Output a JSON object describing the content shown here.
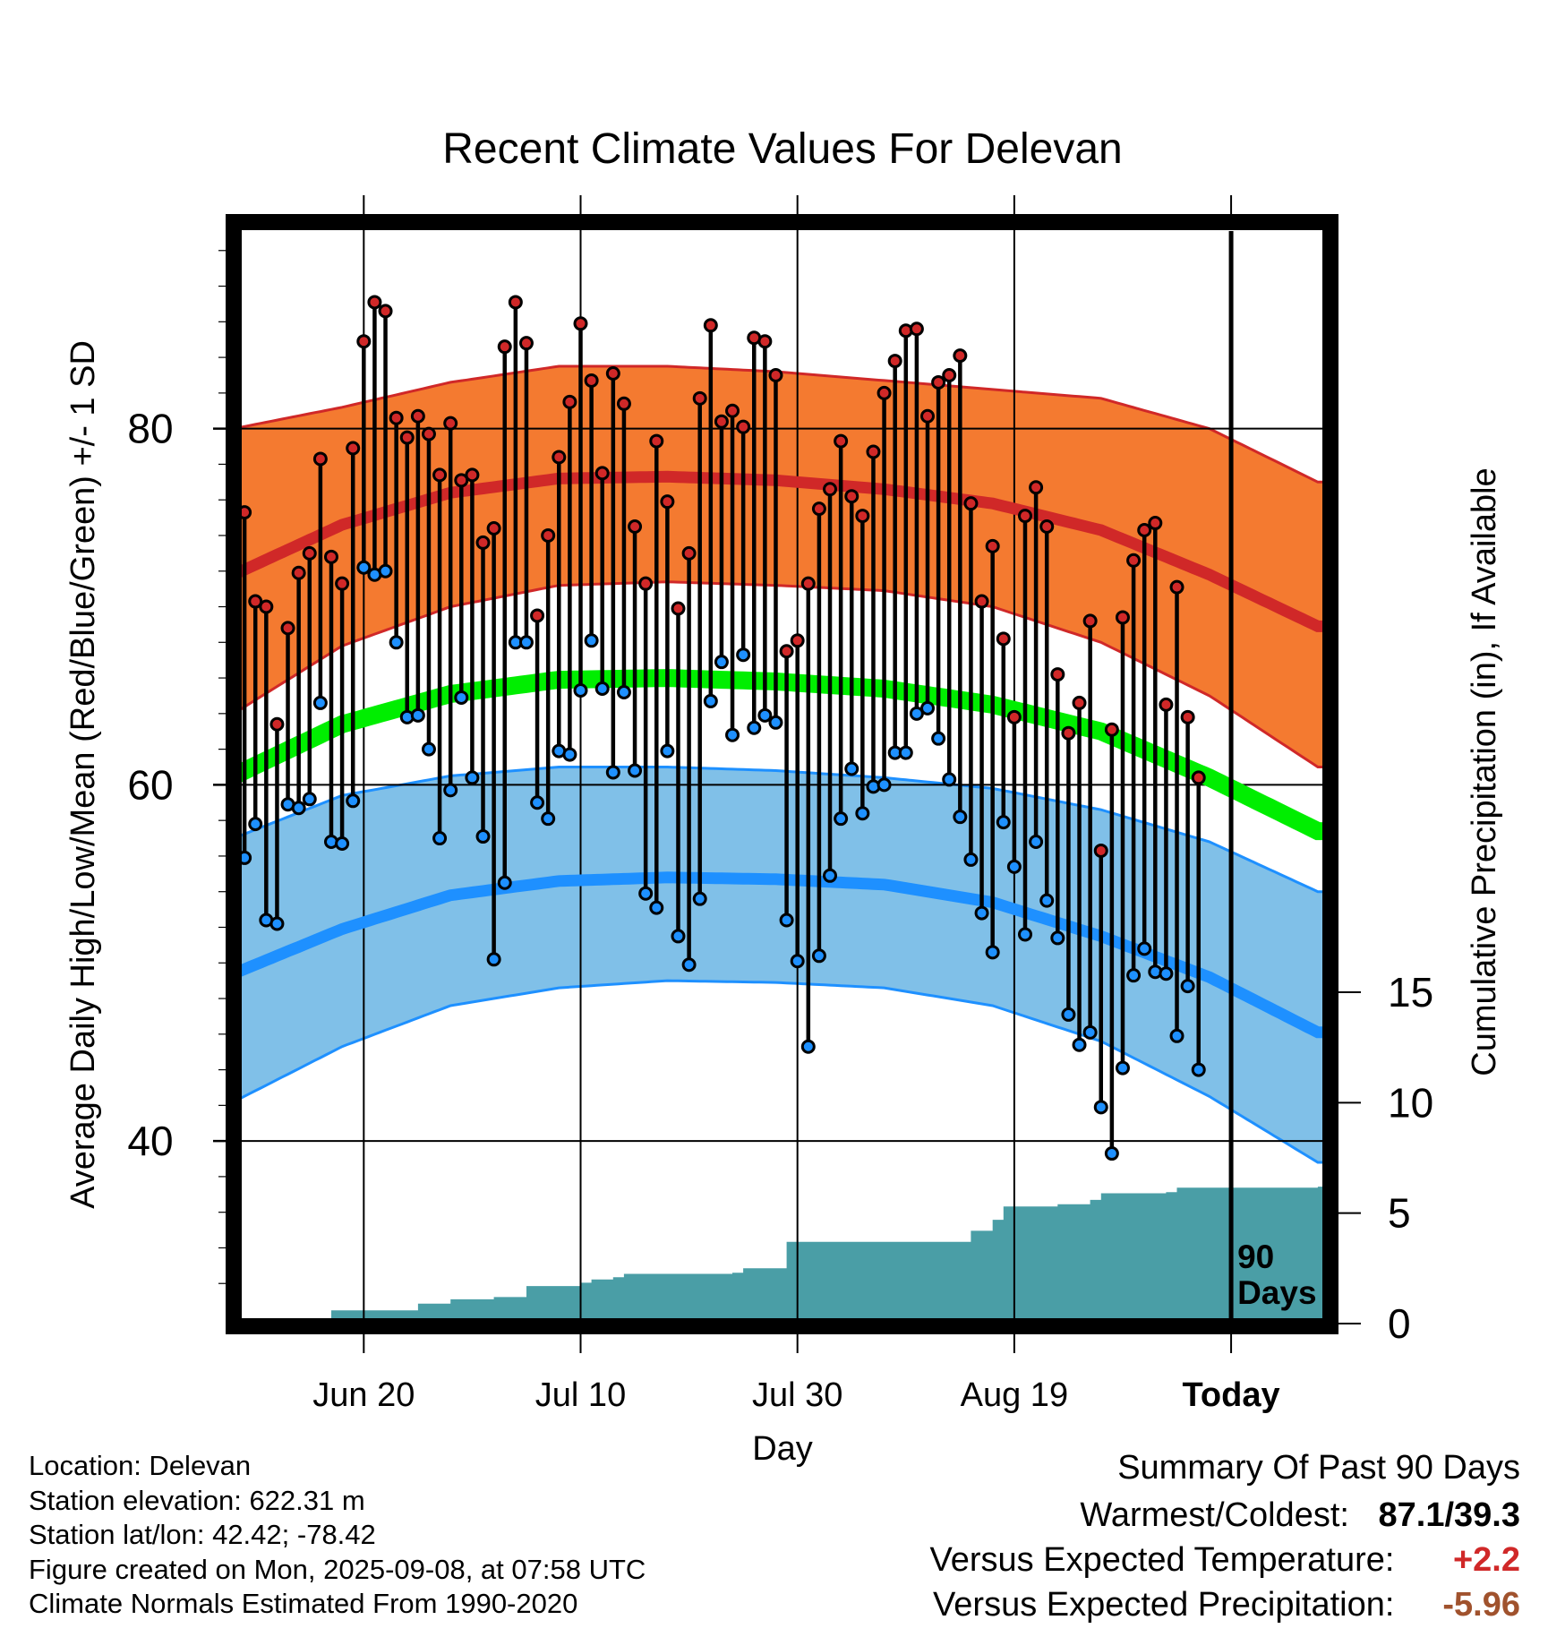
{
  "chart_data": {
    "type": "line",
    "title": "Recent Climate Values For Delevan",
    "xlabel": "Day",
    "ylabel": "Average Daily High/Low/Mean (Red/Blue/Green) +/- 1 SD",
    "ylabel2": "Cumulative Precipitation (in), If Available",
    "x_ticks": [
      {
        "label": "Jun 20",
        "day": 12
      },
      {
        "label": "Jul 10",
        "day": 32
      },
      {
        "label": "Jul 30",
        "day": 52
      },
      {
        "label": "Aug 19",
        "day": 72
      },
      {
        "label": "Today",
        "day": 92
      }
    ],
    "xlim_days": [
      0,
      100.5
    ],
    "ylim_temp": [
      30,
      92
    ],
    "y_ticks_temp": [
      40,
      60,
      80
    ],
    "y_ticks_precip": [
      0,
      5,
      10,
      15
    ],
    "precip_axis_span_in": 20,
    "grid": true,
    "today_day": 92,
    "today_label": [
      "90",
      "Days"
    ],
    "colors": {
      "high_band": "#f47a30",
      "high_line": "#d02828",
      "low_band": "#80c0e8",
      "low_line": "#1e90ff",
      "mean_line": "#00ee00",
      "precip": "#4a9ea6",
      "high_point": "#d02828",
      "low_point": "#1e90ff",
      "positive_temp": "#d02828",
      "negative_precip": "#a0522d"
    },
    "normals": {
      "days": [
        0,
        10,
        20,
        30,
        40,
        50,
        60,
        70,
        80,
        90,
        100
      ],
      "high_mean": [
        71.8,
        74.6,
        76.4,
        77.2,
        77.3,
        77.1,
        76.6,
        75.8,
        74.3,
        71.8,
        68.9
      ],
      "high_upper": [
        80.0,
        81.2,
        82.6,
        83.5,
        83.5,
        83.2,
        82.7,
        82.2,
        81.7,
        80.0,
        77.0
      ],
      "high_lower": [
        64.0,
        67.8,
        70.0,
        71.2,
        71.4,
        71.2,
        70.9,
        70.0,
        68.0,
        65.0,
        61.0
      ],
      "mean": [
        60.5,
        63.4,
        65.1,
        65.9,
        66.0,
        65.8,
        65.4,
        64.5,
        63.0,
        60.4,
        57.4
      ],
      "low_mean": [
        49.4,
        51.9,
        53.8,
        54.6,
        54.8,
        54.7,
        54.4,
        53.4,
        51.5,
        49.2,
        46.1
      ],
      "low_upper": [
        57.0,
        59.4,
        60.5,
        61.0,
        61.0,
        60.8,
        60.4,
        59.8,
        58.6,
        56.8,
        54.0
      ],
      "low_lower": [
        42.2,
        45.3,
        47.6,
        48.6,
        49.0,
        48.9,
        48.6,
        47.6,
        45.6,
        42.5,
        38.8
      ]
    },
    "series": [
      {
        "name": "Daily High",
        "start_day": 0,
        "values": [
          65.7,
          75.3,
          70.3,
          70.0,
          63.4,
          68.8,
          71.9,
          73.0,
          78.3,
          72.8,
          71.3,
          78.9,
          84.9,
          87.1,
          86.6,
          80.6,
          79.5,
          80.7,
          79.7,
          77.4,
          80.3,
          77.1,
          77.4,
          73.6,
          74.4,
          84.6,
          87.1,
          84.8,
          69.5,
          74.0,
          78.4,
          81.5,
          85.9,
          82.7,
          77.5,
          83.1,
          81.4,
          74.5,
          71.3,
          79.3,
          75.9,
          69.9,
          73.0,
          81.7,
          85.8,
          80.4,
          81.0,
          80.1,
          85.1,
          84.9,
          83.0,
          67.5,
          68.1,
          71.3,
          75.5,
          76.6,
          79.3,
          76.2,
          75.1,
          78.7,
          82.0,
          83.8,
          85.5,
          85.6,
          80.7,
          82.6,
          83.0,
          84.1,
          75.8,
          70.3,
          73.4,
          68.2,
          63.8,
          75.1,
          76.7,
          74.5,
          66.2,
          62.9,
          64.6,
          69.2,
          56.3,
          63.1,
          69.4,
          72.6,
          74.3,
          74.7,
          64.5,
          71.1,
          63.8,
          60.4
        ]
      },
      {
        "name": "Daily Low",
        "start_day": 0,
        "values": [
          55.9,
          55.9,
          57.8,
          52.4,
          52.2,
          58.9,
          58.7,
          59.2,
          64.6,
          56.8,
          56.7,
          59.1,
          72.2,
          71.8,
          72.0,
          68.0,
          63.8,
          63.9,
          62.0,
          57.0,
          59.7,
          64.9,
          60.4,
          57.1,
          50.2,
          54.5,
          68.0,
          68.0,
          59.0,
          58.1,
          61.9,
          61.7,
          65.3,
          68.1,
          65.4,
          60.7,
          65.2,
          60.8,
          53.9,
          53.1,
          61.9,
          51.5,
          49.9,
          53.6,
          64.7,
          66.9,
          62.8,
          67.3,
          63.2,
          63.9,
          63.5,
          52.4,
          50.1,
          45.3,
          50.4,
          54.9,
          58.1,
          60.9,
          58.4,
          59.9,
          60.0,
          61.8,
          61.8,
          64.0,
          64.3,
          62.6,
          60.3,
          58.2,
          55.8,
          52.8,
          50.6,
          57.9,
          55.4,
          51.6,
          56.8,
          53.5,
          51.4,
          47.1,
          45.4,
          46.1,
          41.9,
          39.3,
          44.1,
          49.3,
          50.8,
          49.5,
          49.4,
          45.9,
          48.7,
          44.0
        ]
      },
      {
        "name": "Cumulative Precipitation (in)",
        "points": [
          [
            0,
            0
          ],
          [
            8,
            0
          ],
          [
            9,
            0.6
          ],
          [
            16,
            0.6
          ],
          [
            17,
            0.9
          ],
          [
            19,
            0.9
          ],
          [
            20,
            1.1
          ],
          [
            23,
            1.1
          ],
          [
            24,
            1.2
          ],
          [
            26,
            1.2
          ],
          [
            27,
            1.7
          ],
          [
            31,
            1.7
          ],
          [
            32,
            1.85
          ],
          [
            33,
            2.0
          ],
          [
            35,
            2.1
          ],
          [
            36,
            2.25
          ],
          [
            46,
            2.3
          ],
          [
            47,
            2.5
          ],
          [
            50,
            2.5
          ],
          [
            51,
            3.7
          ],
          [
            67,
            3.7
          ],
          [
            68,
            4.2
          ],
          [
            70,
            4.7
          ],
          [
            71,
            5.3
          ],
          [
            76,
            5.4
          ],
          [
            79,
            5.6
          ],
          [
            80,
            5.9
          ],
          [
            86,
            5.95
          ],
          [
            87,
            6.15
          ],
          [
            100,
            6.2
          ]
        ]
      }
    ]
  },
  "info": {
    "location": "Location: Delevan",
    "elevation": "Station elevation: 622.31 m",
    "latlon": "Station lat/lon: 42.42; -78.42",
    "created": "Figure created on Mon, 2025-09-08, at 07:58 UTC",
    "normals": "Climate Normals Estimated From 1990-2020"
  },
  "summary": {
    "title": "Summary Of Past 90 Days",
    "warmest_coldest_label": "Warmest/Coldest:",
    "warmest_coldest_value": "87.1/39.3",
    "temp_label": "Versus Expected Temperature:",
    "temp_value": "+2.2",
    "precip_label": "Versus Expected Precipitation:",
    "precip_value": "-5.96"
  }
}
